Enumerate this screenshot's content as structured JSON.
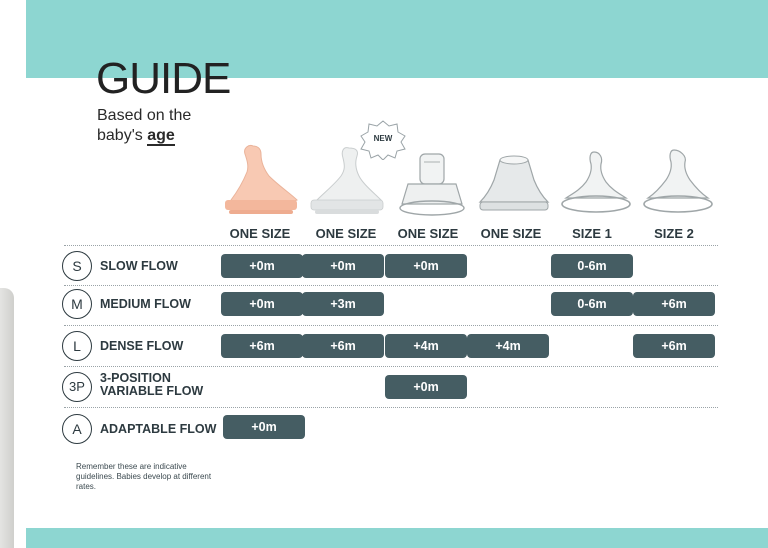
{
  "header": {
    "title": "GUIDE",
    "subtitle_line1": "Based on the",
    "subtitle_line2_prefix": "baby's ",
    "subtitle_line2_bold": "age"
  },
  "badge": {
    "text": "NEW"
  },
  "columns": [
    "ONE SIZE",
    "ONE SIZE",
    "ONE SIZE",
    "ONE SIZE",
    "SIZE 1",
    "SIZE 2"
  ],
  "rows": [
    {
      "symbol": "S",
      "name": "SLOW FLOW",
      "values": [
        "+0m",
        "+0m",
        "+0m",
        "",
        "0-6m",
        ""
      ]
    },
    {
      "symbol": "M",
      "name": "MEDIUM FLOW",
      "values": [
        "+0m",
        "+3m",
        "",
        "",
        "0-6m",
        "+6m"
      ]
    },
    {
      "symbol": "L",
      "name": "DENSE FLOW",
      "values": [
        "+6m",
        "+6m",
        "+4m",
        "+4m",
        "",
        "+6m"
      ]
    },
    {
      "symbol": "3P",
      "name": "3-POSITION VARIABLE FLOW",
      "name_line1": "3-POSITION",
      "name_line2": "VARIABLE FLOW",
      "values": [
        "",
        "",
        "+0m",
        "",
        "",
        ""
      ]
    },
    {
      "symbol": "A",
      "name": "ADAPTABLE FLOW",
      "values": [
        "+0m",
        "",
        "",
        "",
        "",
        ""
      ]
    }
  ],
  "footnote": "Remember these are indicative guidelines. Babies develop at different rates.",
  "colors": {
    "accent_band": "#8dd6d1",
    "pill": "#455d63",
    "text": "#2d3a40"
  }
}
